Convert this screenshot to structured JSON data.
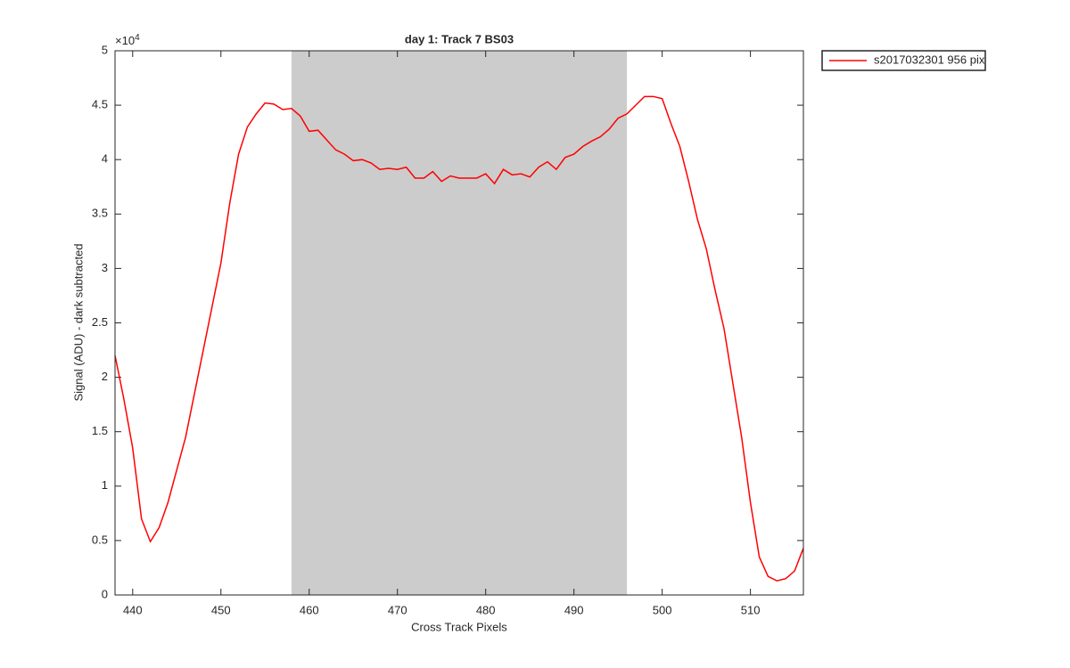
{
  "chart_data": {
    "type": "line",
    "title": "day 1: Track 7  BS03",
    "x_label": "Cross Track Pixels",
    "y_label": "Signal (ADU) - dark subtracted",
    "y_exponent_label": "×10",
    "y_exponent": "4",
    "x": [
      438,
      439,
      440,
      441,
      442,
      443,
      444,
      445,
      446,
      447,
      448,
      449,
      450,
      451,
      452,
      453,
      454,
      455,
      456,
      457,
      458,
      459,
      460,
      461,
      462,
      463,
      464,
      465,
      466,
      467,
      468,
      469,
      470,
      471,
      472,
      473,
      474,
      475,
      476,
      477,
      478,
      479,
      480,
      481,
      482,
      483,
      484,
      485,
      486,
      487,
      488,
      489,
      490,
      491,
      492,
      493,
      494,
      495,
      496,
      497,
      498,
      499,
      500,
      501,
      502,
      503,
      504,
      505,
      506,
      507,
      508,
      509,
      510,
      511,
      512,
      513,
      514,
      515,
      516
    ],
    "series": [
      {
        "name": "s2017032301 956 pix",
        "color": "#ff0000",
        "values": [
          22000,
          18000,
          13500,
          7000,
          4900,
          6200,
          8500,
          11500,
          14500,
          18500,
          22500,
          26500,
          30500,
          36000,
          40500,
          43000,
          44200,
          45200,
          45100,
          44600,
          44700,
          44000,
          42600,
          42700,
          41800,
          40900,
          40500,
          39900,
          40000,
          39700,
          39100,
          39200,
          39100,
          39300,
          38300,
          38300,
          38900,
          38000,
          38500,
          38300,
          38300,
          38300,
          38700,
          37800,
          39100,
          38600,
          38700,
          38400,
          39300,
          39800,
          39100,
          40200,
          40500,
          41200,
          41700,
          42100,
          42800,
          43800,
          44200,
          45000,
          45800,
          45800,
          45600,
          43300,
          41200,
          38000,
          34500,
          31800,
          28000,
          24500,
          19500,
          14500,
          8500,
          3500,
          1700,
          1300,
          1500,
          2200,
          4300
        ]
      }
    ],
    "xlim": [
      438,
      516
    ],
    "ylim": [
      0,
      50000
    ],
    "xticks": [
      440,
      450,
      460,
      470,
      480,
      490,
      500,
      510
    ],
    "yticks": [
      {
        "value": 0,
        "label": "0"
      },
      {
        "value": 5000,
        "label": "0.5"
      },
      {
        "value": 10000,
        "label": "1"
      },
      {
        "value": 15000,
        "label": "1.5"
      },
      {
        "value": 20000,
        "label": "2"
      },
      {
        "value": 25000,
        "label": "2.5"
      },
      {
        "value": 30000,
        "label": "3"
      },
      {
        "value": 35000,
        "label": "3.5"
      },
      {
        "value": 40000,
        "label": "4"
      },
      {
        "value": 45000,
        "label": "4.5"
      },
      {
        "value": 50000,
        "label": "5"
      }
    ],
    "shaded_span": [
      458,
      496
    ],
    "shaded_color": "#cccccc",
    "grid": false,
    "legend_position": "outside-top-right"
  }
}
